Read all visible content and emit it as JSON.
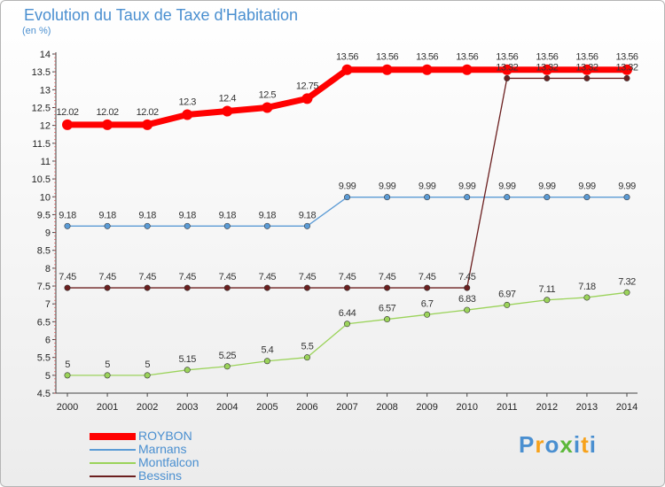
{
  "chart_data": {
    "type": "line",
    "title": "Evolution du Taux de Taxe d'Habitation",
    "subtitle": "(en %)",
    "x": [
      "2000",
      "2001",
      "2002",
      "2003",
      "2004",
      "2005",
      "2006",
      "2007",
      "2008",
      "2009",
      "2010",
      "2011",
      "2012",
      "2013",
      "2014"
    ],
    "ylim": [
      4.5,
      14
    ],
    "yticks": [
      "4.5",
      "5",
      "5.5",
      "6",
      "6.5",
      "7",
      "7.5",
      "8",
      "8.5",
      "9",
      "9.5",
      "10",
      "10.5",
      "11",
      "11.5",
      "12",
      "12.5",
      "13",
      "13.5",
      "14"
    ],
    "grid": false,
    "legend_position": "bottom-left",
    "series": [
      {
        "name": "ROYBON",
        "color": "#ff0000",
        "values": [
          12.02,
          12.02,
          12.02,
          12.3,
          12.4,
          12.5,
          12.75,
          13.56,
          13.56,
          13.56,
          13.56,
          13.56,
          13.56,
          13.56,
          13.56
        ],
        "labels": [
          "12.02",
          "12.02",
          "12.02",
          "12.3",
          "12.4",
          "12.5",
          "12.75",
          "13.56",
          "13.56",
          "13.56",
          "13.56",
          "13.56",
          "13.56",
          "13.56",
          "13.56"
        ]
      },
      {
        "name": "Marnans",
        "color": "#5b9bd5",
        "values": [
          9.18,
          9.18,
          9.18,
          9.18,
          9.18,
          9.18,
          9.18,
          9.99,
          9.99,
          9.99,
          9.99,
          9.99,
          9.99,
          9.99,
          9.99
        ],
        "labels": [
          "9.18",
          "9.18",
          "9.18",
          "9.18",
          "9.18",
          "9.18",
          "9.18",
          "9.99",
          "9.99",
          "9.99",
          "9.99",
          "9.99",
          "9.99",
          "9.99",
          "9.99"
        ]
      },
      {
        "name": "Montfalcon",
        "color": "#9bd35a",
        "values": [
          5,
          5,
          5,
          5.15,
          5.25,
          5.4,
          5.5,
          6.44,
          6.57,
          6.7,
          6.83,
          6.97,
          7.11,
          7.18,
          7.32
        ],
        "labels": [
          "5",
          "5",
          "5",
          "5.15",
          "5.25",
          "5.4",
          "5.5",
          "6.44",
          "6.57",
          "6.7",
          "6.83",
          "6.97",
          "7.11",
          "7.18",
          "7.32"
        ]
      },
      {
        "name": "Bessins",
        "color": "#6b1f1f",
        "values": [
          7.45,
          7.45,
          7.45,
          7.45,
          7.45,
          7.45,
          7.45,
          7.45,
          7.45,
          7.45,
          7.45,
          13.32,
          13.32,
          13.32,
          13.32
        ],
        "labels": [
          "7.45",
          "7.45",
          "7.45",
          "7.45",
          "7.45",
          "7.45",
          "7.45",
          "7.45",
          "7.45",
          "7.45",
          "7.45",
          "13.32",
          "13.32",
          "13.32",
          "13.32"
        ]
      }
    ]
  },
  "logo": {
    "letters": [
      "P",
      "r",
      "o",
      "x",
      "i",
      "t",
      "i"
    ],
    "colors": [
      "#4a8fd0",
      "#f7a21b",
      "#4a8fd0",
      "#5cb83a",
      "#4a8fd0",
      "#f7a21b",
      "#4a8fd0"
    ]
  }
}
